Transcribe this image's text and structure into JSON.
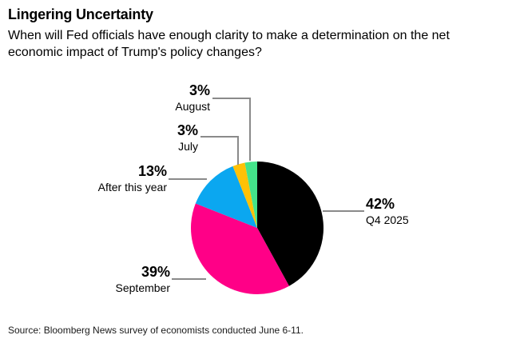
{
  "chart_data": {
    "type": "pie",
    "title": "Lingering Uncertainty",
    "subtitle": "When will Fed officials have enough clarity to make a determination on the net economic impact of Trump's policy changes?",
    "source": "Source: Bloomberg News survey of economists conducted June 6-11.",
    "start_angle_deg": 0,
    "direction": "clockwise",
    "legend_position": "callout-labels",
    "callout_line_color": "#8a8a8a",
    "slices": [
      {
        "label": "Q4 2025",
        "value": 42,
        "pct_label": "42%",
        "color": "#000000"
      },
      {
        "label": "September",
        "value": 39,
        "pct_label": "39%",
        "color": "#ff0087"
      },
      {
        "label": "After this year",
        "value": 13,
        "pct_label": "13%",
        "color": "#0ba7f0"
      },
      {
        "label": "July",
        "value": 3,
        "pct_label": "3%",
        "color": "#ffc107"
      },
      {
        "label": "August",
        "value": 3,
        "pct_label": "3%",
        "color": "#44e38a"
      }
    ]
  }
}
